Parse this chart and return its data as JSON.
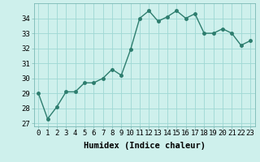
{
  "x": [
    0,
    1,
    2,
    3,
    4,
    5,
    6,
    7,
    8,
    9,
    10,
    11,
    12,
    13,
    14,
    15,
    16,
    17,
    18,
    19,
    20,
    21,
    22,
    23
  ],
  "y": [
    29.0,
    27.3,
    28.1,
    29.1,
    29.1,
    29.7,
    29.7,
    30.0,
    30.6,
    30.2,
    31.9,
    34.0,
    34.5,
    33.8,
    34.1,
    34.5,
    34.0,
    34.3,
    33.0,
    33.0,
    33.3,
    33.0,
    32.2,
    32.5
  ],
  "line_color": "#2d7d6e",
  "marker": "o",
  "marker_size": 2.5,
  "bg_color": "#cef0ec",
  "grid_color": "#9ed8d4",
  "xlabel": "Humidex (Indice chaleur)",
  "ylim": [
    26.8,
    35.0
  ],
  "xlim": [
    -0.5,
    23.5
  ],
  "yticks": [
    27,
    28,
    29,
    30,
    31,
    32,
    33,
    34
  ],
  "xticks": [
    0,
    1,
    2,
    3,
    4,
    5,
    6,
    7,
    8,
    9,
    10,
    11,
    12,
    13,
    14,
    15,
    16,
    17,
    18,
    19,
    20,
    21,
    22,
    23
  ],
  "xlabel_fontsize": 7.5,
  "tick_fontsize": 6.5,
  "linewidth": 1.0
}
